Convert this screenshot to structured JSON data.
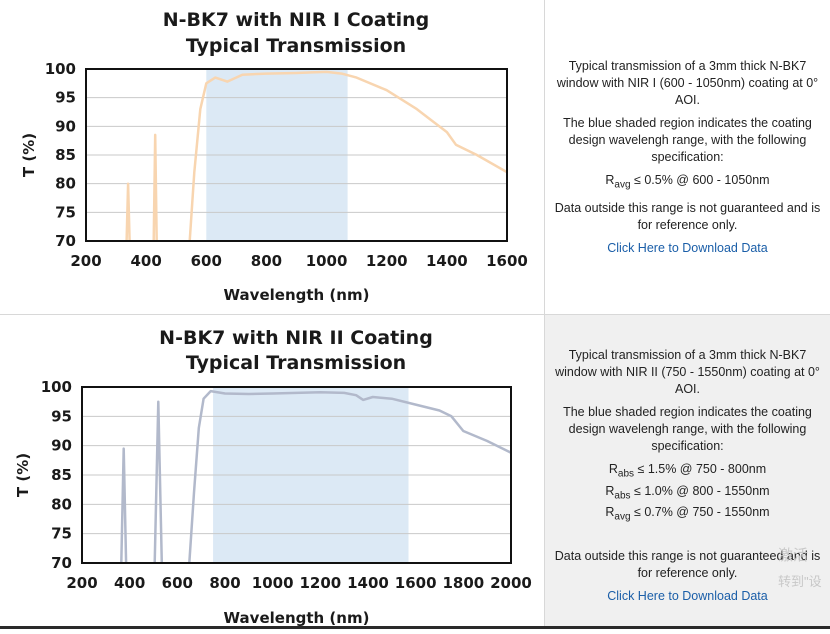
{
  "panels": [
    {
      "info": {
        "p1": "Typical transmission of a 3mm thick N-BK7 window with NIR I (600 - 1050nm) coating at 0° AOI.",
        "p2": "The blue shaded region indicates the coating design wavelengh range, with the following specification:",
        "specs": [
          {
            "sym": "R",
            "sub": "avg",
            "text": " ≤ 0.5% @ 600 - 1050nm"
          }
        ],
        "p3": "Data outside this range is not guaranteed and is for reference only.",
        "link": "Click Here to Download Data"
      }
    },
    {
      "info": {
        "p1": "Typical transmission of a 3mm thick N-BK7 window with NIR II (750 - 1550nm) coating at 0° AOI.",
        "p2": "The blue shaded region indicates the coating design wavelengh range, with the following specification:",
        "specs": [
          {
            "sym": "R",
            "sub": "abs",
            "text": " ≤ 1.5% @ 750 - 800nm"
          },
          {
            "sym": "R",
            "sub": "abs",
            "text": " ≤ 1.0% @ 800 - 1550nm"
          },
          {
            "sym": "R",
            "sub": "avg",
            "text": " ≤ 0.7% @ 750 - 1550nm"
          }
        ],
        "p3": "Data outside this range is not guaranteed and is for reference only.",
        "link": "Click Here to Download Data"
      }
    }
  ],
  "watermark": {
    "line1": "激活",
    "line2": "转到\"设"
  },
  "chart_data": [
    {
      "type": "line",
      "title": [
        "N-BK7 with NIR I Coating",
        "Typical Transmission"
      ],
      "xlabel": "Wavelength (nm)",
      "ylabel": "T (%)",
      "xlim": [
        200,
        1600
      ],
      "ylim": [
        70,
        100
      ],
      "xticks": [
        200,
        400,
        600,
        800,
        1000,
        1200,
        1400,
        1600
      ],
      "yticks": [
        70,
        75,
        80,
        85,
        90,
        95,
        100
      ],
      "grid": true,
      "shaded_range": [
        600,
        1070
      ],
      "shade_color": "#dce9f5",
      "line_color": "#f8d5b0",
      "series": [
        {
          "segments": [
            [
              [
                335,
                70
              ],
              [
                340,
                80
              ],
              [
                345,
                70
              ]
            ],
            [
              [
                425,
                70
              ],
              [
                430,
                88.5
              ],
              [
                435,
                70
              ]
            ],
            [
              [
                545,
                70
              ],
              [
                560,
                82
              ],
              [
                580,
                93
              ],
              [
                600,
                97.5
              ],
              [
                630,
                98.5
              ],
              [
                670,
                97.8
              ],
              [
                720,
                99
              ],
              [
                800,
                99.2
              ],
              [
                900,
                99.3
              ],
              [
                950,
                99.4
              ],
              [
                1000,
                99.5
              ],
              [
                1050,
                99.2
              ],
              [
                1100,
                98.5
              ],
              [
                1200,
                96.3
              ],
              [
                1300,
                93
              ],
              [
                1350,
                91
              ],
              [
                1400,
                89
              ],
              [
                1430,
                86.8
              ],
              [
                1500,
                85
              ],
              [
                1600,
                82
              ]
            ]
          ]
        }
      ]
    },
    {
      "type": "line",
      "title": [
        "N-BK7 with NIR II Coating",
        "Typical Transmission"
      ],
      "xlabel": "Wavelength (nm)",
      "ylabel": "T (%)",
      "xlim": [
        200,
        2000
      ],
      "ylim": [
        70,
        100
      ],
      "xticks": [
        200,
        400,
        600,
        800,
        1000,
        1200,
        1400,
        1600,
        1800,
        2000
      ],
      "yticks": [
        70,
        75,
        80,
        85,
        90,
        95,
        100
      ],
      "grid": true,
      "shaded_range": [
        750,
        1570
      ],
      "shade_color": "#dce9f5",
      "line_color": "#b2b9cb",
      "series": [
        {
          "segments": [
            [
              [
                365,
                70
              ],
              [
                375,
                89.5
              ],
              [
                385,
                70
              ]
            ],
            [
              [
                505,
                70
              ],
              [
                520,
                97.5
              ],
              [
                535,
                70
              ]
            ],
            [
              [
                650,
                70
              ],
              [
                670,
                82
              ],
              [
                690,
                93
              ],
              [
                710,
                98
              ],
              [
                740,
                99.3
              ],
              [
                800,
                98.9
              ],
              [
                900,
                98.8
              ],
              [
                1000,
                98.9
              ],
              [
                1100,
                99
              ],
              [
                1200,
                99.1
              ],
              [
                1300,
                99
              ],
              [
                1350,
                98.6
              ],
              [
                1380,
                97.8
              ],
              [
                1420,
                98.3
              ],
              [
                1500,
                98
              ],
              [
                1600,
                97
              ],
              [
                1700,
                96
              ],
              [
                1750,
                95
              ],
              [
                1800,
                92.5
              ],
              [
                1900,
                90.8
              ],
              [
                2000,
                88.8
              ]
            ]
          ]
        }
      ]
    }
  ]
}
